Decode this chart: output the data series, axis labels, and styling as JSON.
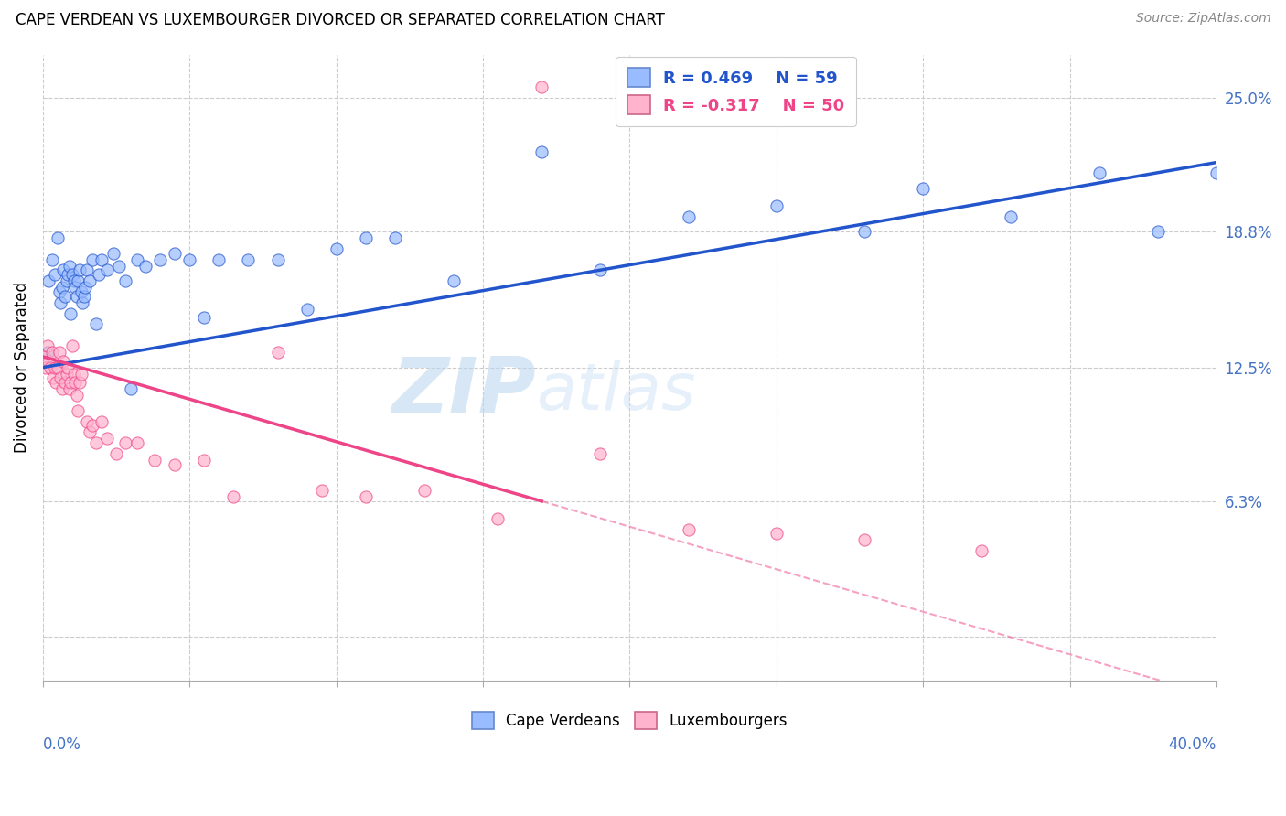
{
  "title": "CAPE VERDEAN VS LUXEMBOURGER DIVORCED OR SEPARATED CORRELATION CHART",
  "source": "Source: ZipAtlas.com",
  "ylabel": "Divorced or Separated",
  "xmin": 0.0,
  "xmax": 40.0,
  "ymin": -2.0,
  "ymax": 27.0,
  "yplot_min": 0.0,
  "yplot_max": 26.5,
  "legend1_r": "0.469",
  "legend1_n": "59",
  "legend2_r": "-0.317",
  "legend2_n": "50",
  "blue_color": "#99BBFF",
  "pink_color": "#FFB3CC",
  "blue_line_color": "#2255CC",
  "pink_line_color": "#EE4488",
  "watermark_zip": "ZIP",
  "watermark_atlas": "atlas",
  "right_ytick_vals": [
    0.0,
    6.3,
    12.5,
    18.8,
    25.0
  ],
  "right_yticklabels": [
    "",
    "6.3%",
    "12.5%",
    "18.8%",
    "25.0%"
  ],
  "blue_x": [
    0.15,
    0.2,
    0.3,
    0.4,
    0.5,
    0.55,
    0.6,
    0.65,
    0.7,
    0.75,
    0.8,
    0.85,
    0.9,
    0.95,
    1.0,
    1.05,
    1.1,
    1.15,
    1.2,
    1.25,
    1.3,
    1.35,
    1.4,
    1.45,
    1.5,
    1.6,
    1.7,
    1.8,
    1.9,
    2.0,
    2.2,
    2.4,
    2.6,
    2.8,
    3.0,
    3.2,
    3.5,
    4.0,
    4.5,
    5.0,
    5.5,
    6.0,
    7.0,
    8.0,
    9.0,
    10.0,
    11.0,
    12.0,
    14.0,
    17.0,
    19.0,
    22.0,
    25.0,
    28.0,
    30.0,
    33.0,
    36.0,
    38.0,
    40.0
  ],
  "blue_y": [
    13.2,
    16.5,
    17.5,
    16.8,
    18.5,
    16.0,
    15.5,
    16.2,
    17.0,
    15.8,
    16.5,
    16.8,
    17.2,
    15.0,
    16.8,
    16.5,
    16.2,
    15.8,
    16.5,
    17.0,
    16.0,
    15.5,
    15.8,
    16.2,
    17.0,
    16.5,
    17.5,
    14.5,
    16.8,
    17.5,
    17.0,
    17.8,
    17.2,
    16.5,
    11.5,
    17.5,
    17.2,
    17.5,
    17.8,
    17.5,
    14.8,
    17.5,
    17.5,
    17.5,
    15.2,
    18.0,
    18.5,
    18.5,
    16.5,
    22.5,
    17.0,
    19.5,
    20.0,
    18.8,
    20.8,
    19.5,
    21.5,
    18.8,
    21.5
  ],
  "pink_x": [
    0.05,
    0.1,
    0.15,
    0.2,
    0.25,
    0.3,
    0.35,
    0.4,
    0.45,
    0.5,
    0.55,
    0.6,
    0.65,
    0.7,
    0.75,
    0.8,
    0.85,
    0.9,
    0.95,
    1.0,
    1.05,
    1.1,
    1.15,
    1.2,
    1.25,
    1.3,
    1.5,
    1.6,
    1.7,
    1.8,
    2.0,
    2.2,
    2.5,
    2.8,
    3.2,
    3.8,
    4.5,
    5.5,
    6.5,
    8.0,
    9.5,
    11.0,
    13.0,
    15.5,
    17.0,
    19.0,
    22.0,
    25.0,
    28.0,
    32.0
  ],
  "pink_y": [
    13.0,
    12.5,
    13.5,
    12.8,
    12.5,
    13.2,
    12.0,
    12.5,
    11.8,
    12.5,
    13.2,
    12.0,
    11.5,
    12.8,
    11.8,
    12.2,
    12.5,
    11.5,
    11.8,
    13.5,
    12.2,
    11.8,
    11.2,
    10.5,
    11.8,
    12.2,
    10.0,
    9.5,
    9.8,
    9.0,
    10.0,
    9.2,
    8.5,
    9.0,
    9.0,
    8.2,
    8.0,
    8.2,
    6.5,
    13.2,
    6.8,
    6.5,
    6.8,
    5.5,
    25.5,
    8.5,
    5.0,
    4.8,
    4.5,
    4.0
  ]
}
